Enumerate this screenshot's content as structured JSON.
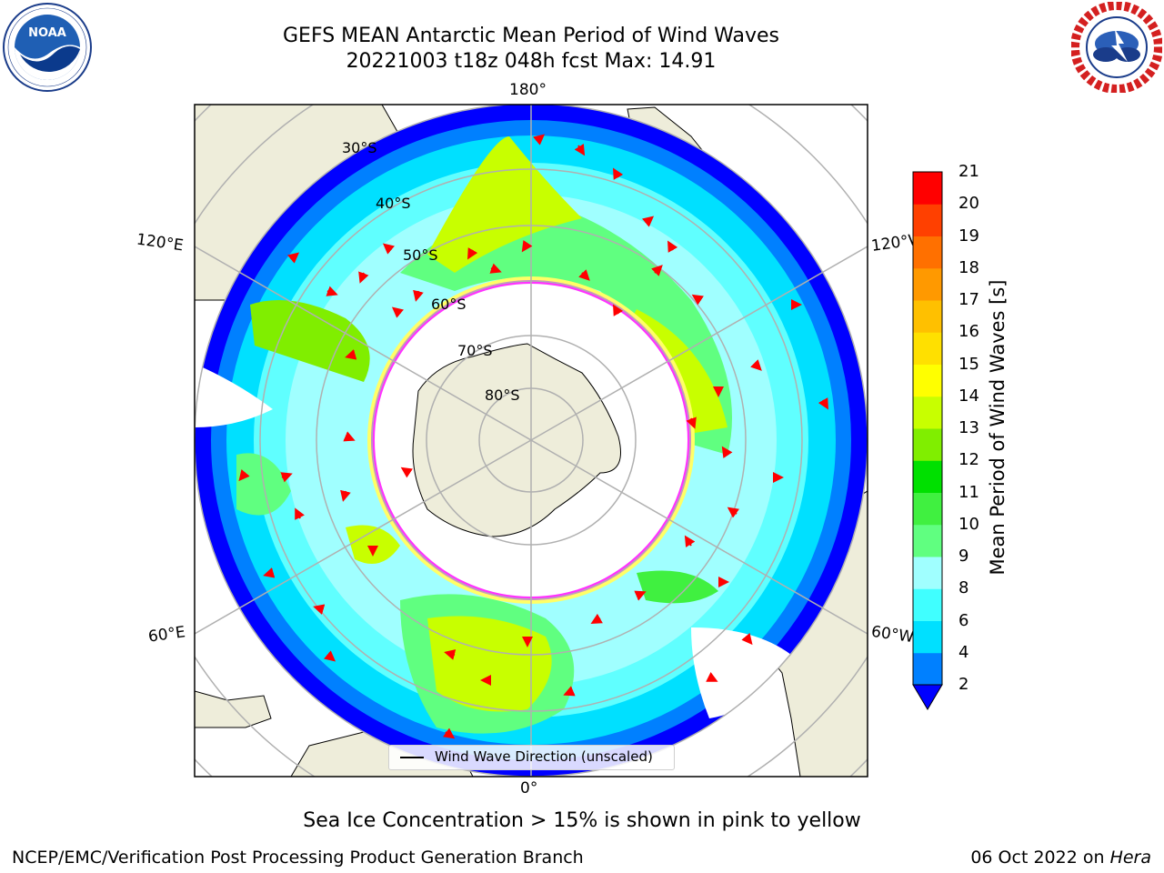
{
  "header": {
    "title_line1": "GEFS MEAN Antarctic Mean Period of Wind Waves",
    "title_line2": "20221003 t18z 048h fcst   Max: 14.91"
  },
  "logos": {
    "left": {
      "icon": "noaa-logo",
      "text": "NOAA",
      "ring_text": "NATIONAL OCEANIC AND ATMOSPHERIC ADMINISTRATION · U.S. DEPARTMENT OF COMMERCE"
    },
    "right": {
      "icon": "nws-logo",
      "ring_text": "NATIONAL WEATHER SERVICE"
    }
  },
  "map": {
    "projection": "south-polar-stereographic",
    "lon_labels": {
      "top": "180°",
      "bottom": "0°",
      "left_upper": "120°E",
      "left_lower": "60°E",
      "right_upper": "120°W",
      "right_lower": "60°W"
    },
    "lat_labels": [
      "30°S",
      "40°S",
      "50°S",
      "60°S",
      "70°S",
      "80°S"
    ],
    "land_color": "#eeedda",
    "ice_edge_colors": [
      "#ff33ff",
      "#ffb000",
      "#ffff66"
    ],
    "arrow_color": "#ff0000",
    "legend_text": "Wind Wave Direction (unscaled)"
  },
  "colorbar": {
    "label": "Mean Period of Wind Waves [s]",
    "ticks": [
      "2",
      "4",
      "6",
      "8",
      "9",
      "10",
      "11",
      "12",
      "13",
      "14",
      "15",
      "16",
      "17",
      "18",
      "19",
      "20",
      "21"
    ],
    "colors": [
      "#0000ff",
      "#0080ff",
      "#00e0ff",
      "#40ffff",
      "#a0ffff",
      "#60ff80",
      "#40f040",
      "#00e000",
      "#80ee00",
      "#c8ff00",
      "#ffff00",
      "#ffe000",
      "#ffc000",
      "#ff9900",
      "#ff7000",
      "#ff4000",
      "#ff0000"
    ],
    "extend": "min"
  },
  "caption": "Sea Ice Concentration > 15% is shown in pink to yellow",
  "footer": {
    "left": "NCEP/EMC/Verification Post Processing Product Generation Branch",
    "date": "06 Oct 2022 on ",
    "machine": "Hera"
  }
}
